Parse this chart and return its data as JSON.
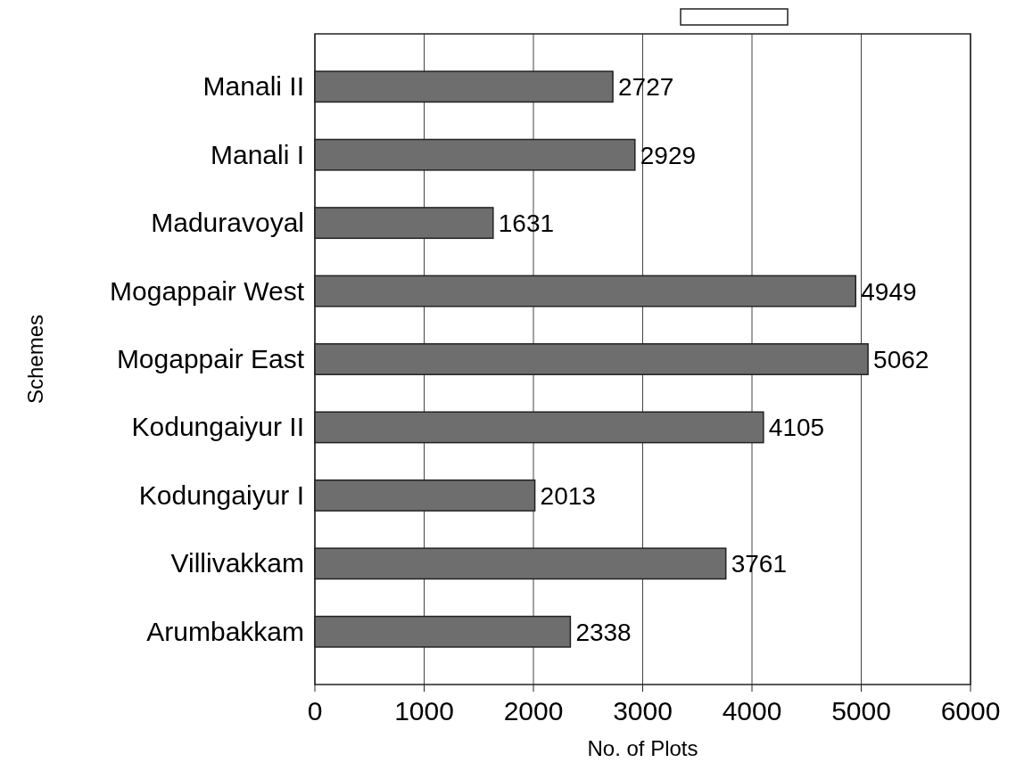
{
  "chart_data": {
    "type": "bar",
    "orientation": "horizontal",
    "xlabel": "No. of Plots",
    "ylabel": "Schemes",
    "categories": [
      "Manali II",
      "Manali I",
      "Maduravoyal",
      "Mogappair West",
      "Mogappair East",
      "Kodungaiyur II",
      "Kodungaiyur I",
      "Villivakkam",
      "Arumbakkam"
    ],
    "values": [
      2727,
      2929,
      1631,
      4949,
      5062,
      4105,
      2013,
      3761,
      2338
    ],
    "color": "#6e6e6e",
    "xlim": [
      0,
      6000
    ],
    "xticks": [
      0,
      1000,
      2000,
      3000,
      4000,
      5000,
      6000
    ],
    "grid": "x",
    "data_labels": true
  }
}
